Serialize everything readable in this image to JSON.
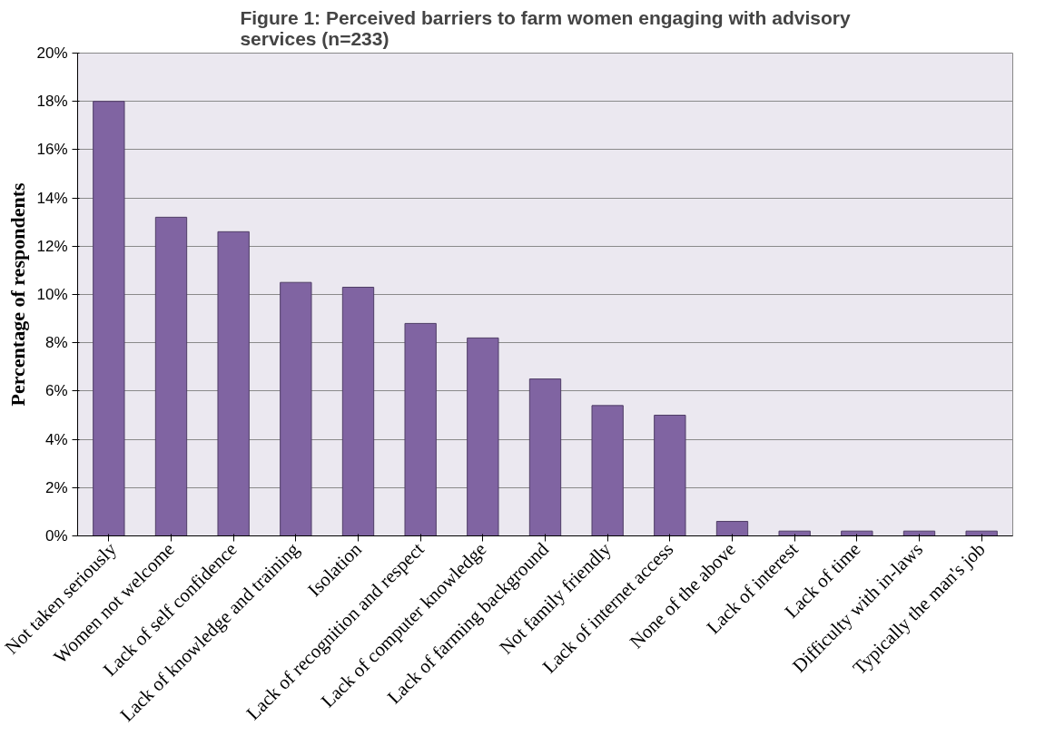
{
  "chart_data": {
    "type": "bar",
    "title": "Figure 1: Perceived barriers to farm women engaging with advisory services (n=233)",
    "ylabel": "Percentage of respondents",
    "categories": [
      "Not taken seriously",
      "Women not welcome",
      "Lack of self confidence",
      "Lack of knowledge and training",
      "Isolation",
      "Lack of recognition and respect",
      "Lack of computer knowledge",
      "Lack of farming background",
      "Not family friendly",
      "Lack of internet access",
      "None of the above",
      "Lack of interest",
      "Lack of time",
      "Difficulty with in-laws",
      "Typically the man's job"
    ],
    "values": [
      18,
      13.2,
      12.6,
      10.5,
      10.3,
      8.8,
      8.2,
      6.5,
      5.4,
      5.0,
      0.6,
      0.2,
      0.2,
      0.2,
      0.2
    ],
    "color": "#8064a2",
    "ylim": [
      0,
      20
    ],
    "yticks": [
      {
        "value": 0,
        "label": "0%"
      },
      {
        "value": 2,
        "label": "2%"
      },
      {
        "value": 4,
        "label": "4%"
      },
      {
        "value": 6,
        "label": "6%"
      },
      {
        "value": 8,
        "label": "8%"
      },
      {
        "value": 10,
        "label": "10%"
      },
      {
        "value": 12,
        "label": "12%"
      },
      {
        "value": 14,
        "label": "14%"
      },
      {
        "value": 16,
        "label": "16%"
      },
      {
        "value": 18,
        "label": "18%"
      },
      {
        "value": 20,
        "label": "20%"
      }
    ],
    "grid": "y"
  }
}
